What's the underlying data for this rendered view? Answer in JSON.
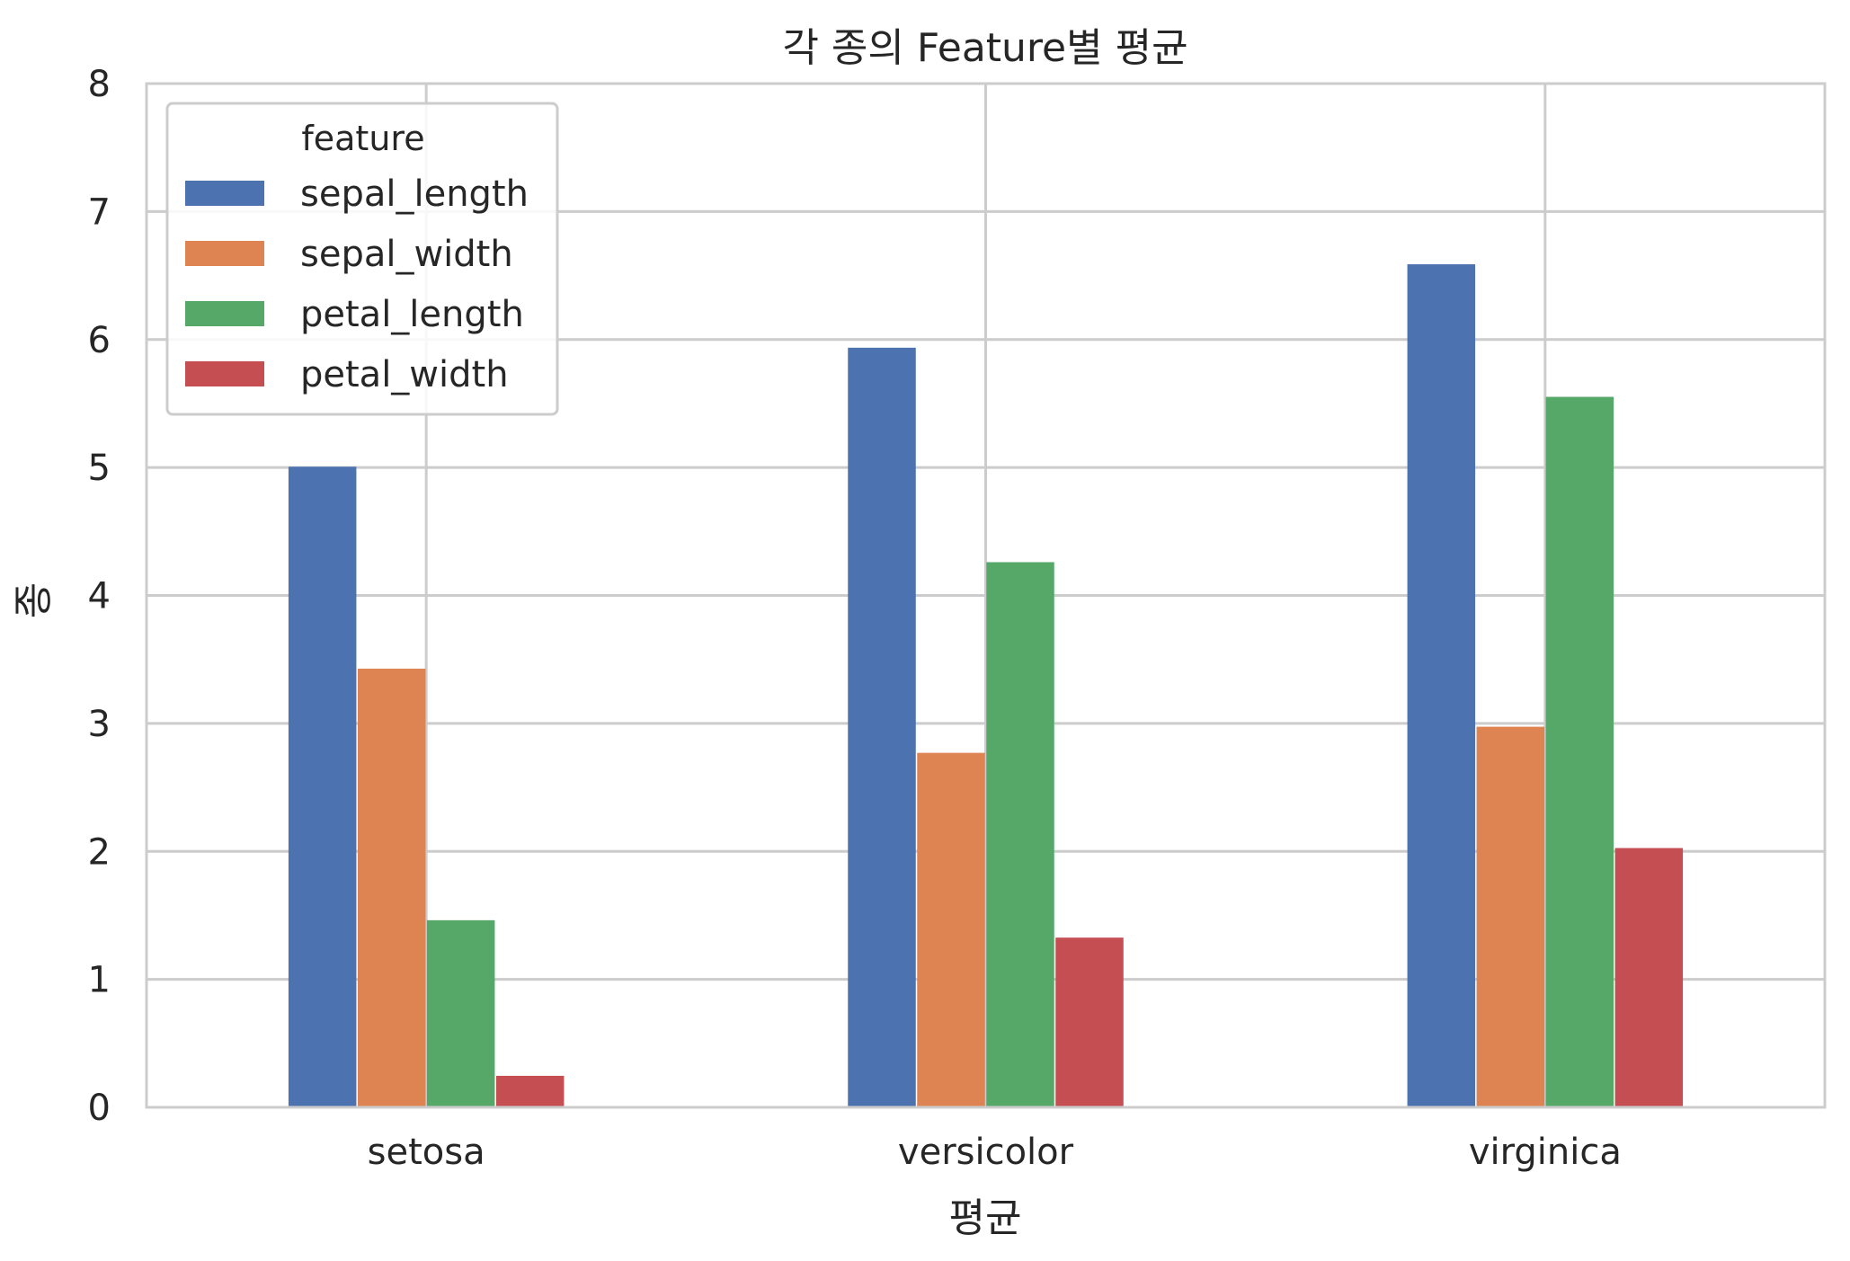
{
  "chart_data": {
    "type": "bar",
    "title": "각 종의 Feature별 평균",
    "xlabel": "평균",
    "ylabel": "종",
    "categories": [
      "setosa",
      "versicolor",
      "virginica"
    ],
    "ylim": [
      0,
      8
    ],
    "yticks": [
      0,
      1,
      2,
      3,
      4,
      5,
      6,
      7,
      8
    ],
    "grid": true,
    "legend": {
      "title": "feature",
      "placement": "top-left"
    },
    "series": [
      {
        "name": "sepal_length",
        "color": "#4c72b0",
        "values": [
          5.006,
          5.936,
          6.588
        ]
      },
      {
        "name": "sepal_width",
        "color": "#dd8452",
        "values": [
          3.428,
          2.77,
          2.974
        ]
      },
      {
        "name": "petal_length",
        "color": "#55a868",
        "values": [
          1.462,
          4.26,
          5.552
        ]
      },
      {
        "name": "petal_width",
        "color": "#c44e52",
        "values": [
          0.246,
          1.326,
          2.026
        ]
      }
    ]
  }
}
